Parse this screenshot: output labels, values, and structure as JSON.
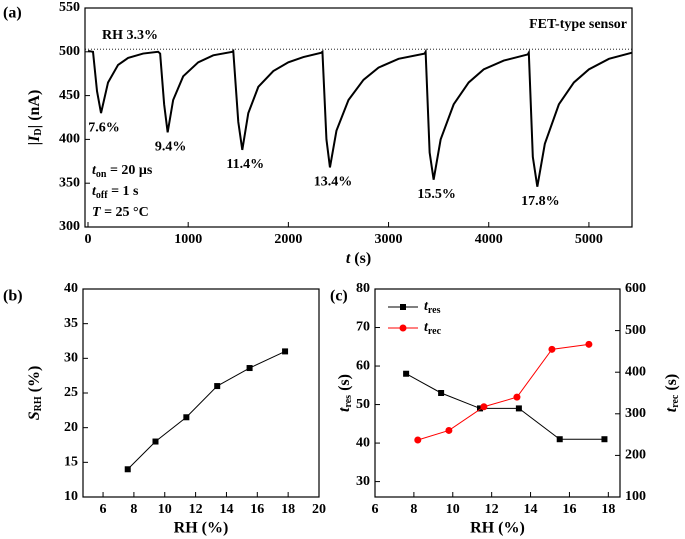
{
  "chart_data": [
    {
      "type": "line",
      "label": "(a)",
      "xlabel": [
        "t",
        " (s)"
      ],
      "ylabel": [
        "|",
        "I",
        "D",
        "| (nA)"
      ],
      "x": [
        0,
        50,
        90,
        130,
        200,
        300,
        400,
        550,
        700,
        720,
        760,
        795,
        850,
        950,
        1100,
        1250,
        1440,
        1450,
        1500,
        1540,
        1600,
        1700,
        1850,
        2000,
        2150,
        2330,
        2340,
        2380,
        2415,
        2480,
        2600,
        2750,
        2900,
        3100,
        3360,
        3370,
        3410,
        3450,
        3520,
        3650,
        3800,
        3950,
        4150,
        4390,
        4400,
        4440,
        4485,
        4560,
        4700,
        4850,
        5000,
        5200,
        5430
      ],
      "series": [
        {
          "color": "#000000",
          "values": [
            501,
            500,
            455,
            430,
            465,
            485,
            493,
            498,
            500,
            498,
            440,
            408,
            445,
            472,
            488,
            496,
            500,
            501,
            420,
            388,
            430,
            460,
            478,
            488,
            494,
            499,
            500,
            400,
            368,
            410,
            445,
            468,
            482,
            492,
            498,
            500,
            385,
            354,
            400,
            440,
            465,
            480,
            490,
            497,
            499,
            380,
            346,
            395,
            440,
            465,
            480,
            492,
            499
          ]
        }
      ],
      "xlim": [
        -30,
        5430
      ],
      "xticks": [
        0,
        1000,
        2000,
        3000,
        4000,
        5000
      ],
      "ylim": [
        300,
        550
      ],
      "yticks": [
        300,
        350,
        400,
        450,
        500,
        550
      ],
      "ref_line": 503,
      "annotations": [
        "RH 3.3%",
        "FET-type sensor"
      ],
      "dip_labels": [
        "7.6%",
        "9.4%",
        "11.4%",
        "13.4%",
        "15.5%",
        "17.8%"
      ],
      "conditions": [
        [
          "t",
          "on",
          " = 20 μs"
        ],
        [
          "t",
          "off",
          " = 1 s"
        ],
        [
          "T",
          " = 25 °C"
        ]
      ]
    },
    {
      "type": "line",
      "label": "(b)",
      "xlabel": "RH (%)",
      "ylabel": [
        "S",
        "RH",
        " (%)"
      ],
      "x": [
        7.6,
        9.4,
        11.4,
        13.4,
        15.5,
        17.8
      ],
      "series": [
        {
          "color": "#000000",
          "marker": "square",
          "values": [
            14,
            18,
            21.5,
            26,
            28.6,
            31
          ]
        }
      ],
      "xlim": [
        4.7,
        20
      ],
      "xticks": [
        6,
        8,
        10,
        12,
        14,
        16,
        18,
        20
      ],
      "ylim": [
        10,
        40
      ],
      "yticks": [
        10,
        15,
        20,
        25,
        30,
        35,
        40
      ]
    },
    {
      "type": "line",
      "label": "(c)",
      "xlabel": "RH (%)",
      "ylabel": [
        "t",
        "res",
        " (s)"
      ],
      "y2label": [
        "t",
        "rec",
        " (s)"
      ],
      "series": [
        {
          "name": [
            "t",
            "res"
          ],
          "color": "#000000",
          "marker": "square",
          "x": [
            7.6,
            9.4,
            11.4,
            13.4,
            15.5,
            17.8
          ],
          "values": [
            58,
            53,
            49,
            49,
            41,
            41
          ]
        },
        {
          "name": [
            "t",
            "rec"
          ],
          "color": "#ff0000",
          "marker": "circle",
          "axis": "y2",
          "x": [
            8.2,
            9.8,
            11.6,
            13.3,
            15.1,
            17.0
          ],
          "values": [
            237,
            260,
            317,
            340,
            455,
            467
          ]
        }
      ],
      "xlim": [
        6,
        18.6
      ],
      "xticks": [
        6,
        8,
        10,
        12,
        14,
        16,
        18
      ],
      "ylim": [
        26,
        80
      ],
      "yticks": [
        30,
        40,
        50,
        60,
        70,
        80
      ],
      "y2lim": [
        100,
        600
      ],
      "y2ticks": [
        100,
        200,
        300,
        400,
        500,
        600
      ]
    }
  ]
}
